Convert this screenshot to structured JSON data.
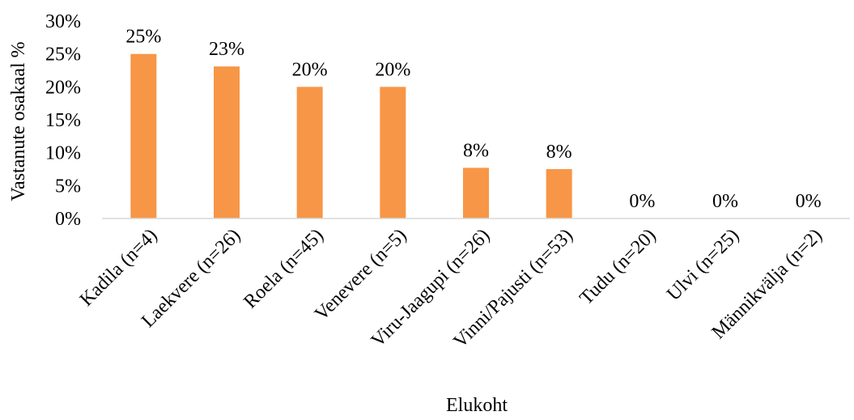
{
  "chart_data": {
    "type": "bar",
    "title": "",
    "xlabel": "Elukoht",
    "ylabel": "Vastanute osakaal %",
    "ylim": [
      0,
      0.3
    ],
    "yticks": [
      "0%",
      "5%",
      "10%",
      "15%",
      "20%",
      "25%",
      "30%"
    ],
    "grid": false,
    "legend": "none",
    "bar_color": "#F79646",
    "categories": [
      "Kadila (n=4)",
      "Laekvere (n=26)",
      "Roela (n=45)",
      "Venevere (n=5)",
      "Viru-Jaagupi (n=26)",
      "Vinni/Pajusti (n=53)",
      "Tudu (n=20)",
      "Ulvi (n=25)",
      "Männikvälja (n=2)"
    ],
    "values": [
      0.25,
      0.231,
      0.2,
      0.2,
      0.077,
      0.075,
      0,
      0,
      0
    ],
    "data_labels": [
      "25%",
      "23%",
      "20%",
      "20%",
      "8%",
      "8%",
      "0%",
      "0%",
      "0%"
    ]
  }
}
